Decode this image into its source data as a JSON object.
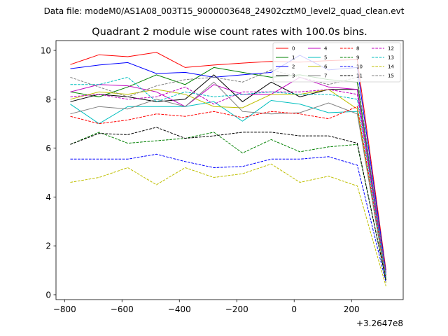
{
  "chart_data": {
    "type": "line",
    "suptitle": "Data file: modeM0/AS1A08_003T15_9000003648_24902cztM0_level2_quad_clean.evt",
    "title": "Quadrant 2 module wise count rates with 100.0s bins.",
    "xlabel": "",
    "ylabel": "",
    "x_offset_label": "+3.2647e8",
    "xlim": [
      -830,
      380
    ],
    "ylim": [
      -0.2,
      10.4
    ],
    "x_ticks": [
      -800,
      -600,
      -400,
      -200,
      0,
      200
    ],
    "x_tick_labels": [
      "−800",
      "−600",
      "−400",
      "−200",
      "0",
      "200"
    ],
    "y_ticks": [
      0,
      2,
      4,
      6,
      8,
      10
    ],
    "y_tick_labels": [
      "0",
      "2",
      "4",
      "6",
      "8",
      "10"
    ],
    "legend_position": "top-right",
    "x": [
      -780,
      -680,
      -580,
      -480,
      -380,
      -280,
      -180,
      -80,
      20,
      120,
      220,
      320
    ],
    "series": [
      {
        "name": "0",
        "color": "#ff0000",
        "dash": "solid",
        "values": [
          9.42,
          9.82,
          9.74,
          9.92,
          9.3,
          9.4,
          9.48,
          9.55,
          9.52,
          9.58,
          9.62,
          1.0
        ]
      },
      {
        "name": "1",
        "color": "#008000",
        "dash": "solid",
        "values": [
          8.3,
          8.1,
          8.5,
          9.0,
          8.6,
          9.3,
          9.1,
          8.9,
          9.0,
          8.8,
          8.7,
          0.8
        ]
      },
      {
        "name": "2",
        "color": "#0000ff",
        "dash": "solid",
        "values": [
          9.25,
          9.4,
          9.5,
          9.05,
          9.1,
          8.9,
          9.0,
          9.1,
          9.8,
          9.2,
          9.3,
          0.9
        ]
      },
      {
        "name": "3",
        "color": "#000000",
        "dash": "solid",
        "values": [
          7.9,
          8.2,
          8.1,
          7.9,
          8.0,
          9.0,
          7.9,
          8.7,
          8.1,
          8.4,
          8.4,
          0.7
        ]
      },
      {
        "name": "4",
        "color": "#c000c0",
        "dash": "solid",
        "values": [
          8.3,
          8.6,
          8.55,
          8.3,
          7.7,
          8.6,
          8.2,
          8.2,
          8.9,
          8.5,
          8.4,
          0.8
        ]
      },
      {
        "name": "5",
        "color": "#00bfbf",
        "dash": "solid",
        "values": [
          7.8,
          7.0,
          7.7,
          7.7,
          7.7,
          7.9,
          7.1,
          7.95,
          7.8,
          7.45,
          7.5,
          0.6
        ]
      },
      {
        "name": "6",
        "color": "#bfbf00",
        "dash": "solid",
        "values": [
          8.0,
          8.3,
          8.2,
          8.4,
          8.2,
          7.7,
          7.65,
          8.2,
          8.2,
          8.4,
          7.6,
          0.5
        ]
      },
      {
        "name": "7",
        "color": "#808080",
        "dash": "solid",
        "values": [
          7.4,
          7.7,
          7.6,
          8.0,
          7.7,
          8.7,
          7.5,
          7.4,
          7.45,
          7.85,
          7.4,
          0.6
        ]
      },
      {
        "name": "8",
        "color": "#ff0000",
        "dash": "dashed",
        "values": [
          7.3,
          7.0,
          7.15,
          7.4,
          7.3,
          7.5,
          7.25,
          7.5,
          7.4,
          7.2,
          7.7,
          0.7
        ]
      },
      {
        "name": "9",
        "color": "#008000",
        "dash": "dashed",
        "values": [
          6.15,
          6.65,
          6.2,
          6.3,
          6.4,
          6.65,
          5.8,
          6.35,
          5.85,
          6.05,
          6.15,
          0.6
        ]
      },
      {
        "name": "10",
        "color": "#0000ff",
        "dash": "dashed",
        "values": [
          5.55,
          5.55,
          5.55,
          5.75,
          5.45,
          5.2,
          5.25,
          5.55,
          5.55,
          5.65,
          5.3,
          0.5
        ]
      },
      {
        "name": "11",
        "color": "#000000",
        "dash": "dashed",
        "values": [
          6.15,
          6.6,
          6.55,
          6.85,
          6.4,
          6.5,
          6.65,
          6.65,
          6.5,
          6.5,
          6.2,
          0.6
        ]
      },
      {
        "name": "12",
        "color": "#c000c0",
        "dash": "dashed",
        "values": [
          8.1,
          8.2,
          8.0,
          8.1,
          8.5,
          7.8,
          8.3,
          8.3,
          8.3,
          8.4,
          8.2,
          0.8
        ]
      },
      {
        "name": "13",
        "color": "#00bfbf",
        "dash": "dashed",
        "values": [
          8.6,
          8.6,
          8.9,
          7.9,
          8.3,
          8.1,
          8.2,
          8.3,
          8.2,
          8.2,
          8.0,
          0.7
        ]
      },
      {
        "name": "14",
        "color": "#bfbf00",
        "dash": "dashed",
        "values": [
          4.6,
          4.8,
          5.2,
          4.5,
          5.2,
          4.8,
          4.95,
          5.35,
          4.6,
          4.85,
          4.45,
          0.35
        ]
      },
      {
        "name": "15",
        "color": "#808080",
        "dash": "dashed",
        "values": [
          8.9,
          8.5,
          8.1,
          8.55,
          8.8,
          8.9,
          8.7,
          9.2,
          8.9,
          8.6,
          8.9,
          0.8
        ]
      }
    ]
  }
}
